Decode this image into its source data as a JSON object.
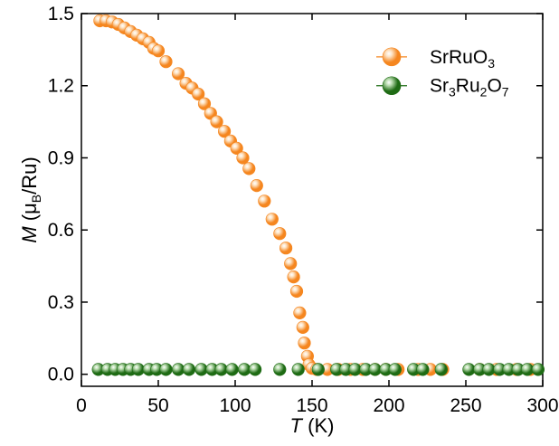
{
  "chart_data": {
    "type": "scatter",
    "x_axis": {
      "label_italic": "T",
      "label_rest": " (K)",
      "range": [
        0,
        300
      ],
      "ticks": [
        0,
        50,
        100,
        150,
        200,
        250,
        300
      ]
    },
    "y_axis": {
      "label_italic": "M",
      "label_open": " (μ",
      "label_sub": "B",
      "label_close": "/Ru)",
      "range": [
        -0.05,
        1.5
      ],
      "ticks": [
        "0.0",
        "0.3",
        "0.6",
        "0.9",
        "1.2",
        "1.5"
      ]
    },
    "grid": false,
    "legend_position": "top-right",
    "series": [
      {
        "name_parts": [
          [
            "SrRuO",
            false
          ],
          [
            "3",
            true
          ]
        ],
        "color": "#f5861f",
        "highlight": "#fde3c4",
        "points": [
          [
            12,
            1.47
          ],
          [
            16,
            1.47
          ],
          [
            20,
            1.465
          ],
          [
            24,
            1.455
          ],
          [
            28,
            1.44
          ],
          [
            32,
            1.425
          ],
          [
            36,
            1.41
          ],
          [
            40,
            1.395
          ],
          [
            44,
            1.38
          ],
          [
            47,
            1.355
          ],
          [
            50,
            1.345
          ],
          [
            55,
            1.3
          ],
          [
            63,
            1.25
          ],
          [
            68,
            1.21
          ],
          [
            72,
            1.19
          ],
          [
            76,
            1.165
          ],
          [
            80,
            1.125
          ],
          [
            84,
            1.085
          ],
          [
            88,
            1.05
          ],
          [
            93,
            1.01
          ],
          [
            97,
            0.97
          ],
          [
            101,
            0.94
          ],
          [
            105,
            0.9
          ],
          [
            109,
            0.855
          ],
          [
            114,
            0.785
          ],
          [
            119,
            0.72
          ],
          [
            124,
            0.645
          ],
          [
            129,
            0.585
          ],
          [
            133,
            0.525
          ],
          [
            136,
            0.46
          ],
          [
            138,
            0.405
          ],
          [
            140,
            0.345
          ],
          [
            142,
            0.255
          ],
          [
            144,
            0.195
          ],
          [
            145,
            0.13
          ],
          [
            147,
            0.075
          ],
          [
            148,
            0.04
          ],
          [
            150,
            0.025
          ],
          [
            153,
            0.02
          ],
          [
            160,
            0.02
          ],
          [
            167,
            0.02
          ],
          [
            175,
            0.02
          ],
          [
            183,
            0.02
          ],
          [
            191,
            0.02
          ],
          [
            198,
            0.02
          ],
          [
            206,
            0.02
          ],
          [
            219,
            0.02
          ],
          [
            227,
            0.02
          ],
          [
            235,
            0.02
          ],
          [
            259,
            0.02
          ],
          [
            270,
            0.02
          ],
          [
            283,
            0.02
          ],
          [
            292,
            0.02
          ]
        ]
      },
      {
        "name_parts": [
          [
            "Sr",
            false
          ],
          [
            "3",
            true
          ],
          [
            "Ru",
            false
          ],
          [
            "2",
            true
          ],
          [
            "O",
            false
          ],
          [
            "7",
            true
          ]
        ],
        "color": "#1e6b14",
        "highlight": "#b9dcaf",
        "points": [
          [
            11,
            0.02
          ],
          [
            17,
            0.02
          ],
          [
            22,
            0.02
          ],
          [
            27,
            0.02
          ],
          [
            32,
            0.02
          ],
          [
            37,
            0.02
          ],
          [
            44,
            0.02
          ],
          [
            49,
            0.02
          ],
          [
            55,
            0.02
          ],
          [
            63,
            0.02
          ],
          [
            70,
            0.02
          ],
          [
            78,
            0.02
          ],
          [
            85,
            0.02
          ],
          [
            91,
            0.02
          ],
          [
            98,
            0.02
          ],
          [
            106,
            0.02
          ],
          [
            113,
            0.02
          ],
          [
            129,
            0.02
          ],
          [
            141,
            0.02
          ],
          [
            154,
            0.02
          ],
          [
            166,
            0.02
          ],
          [
            172,
            0.02
          ],
          [
            178,
            0.02
          ],
          [
            185,
            0.02
          ],
          [
            191,
            0.02
          ],
          [
            198,
            0.02
          ],
          [
            204,
            0.02
          ],
          [
            216,
            0.02
          ],
          [
            222,
            0.02
          ],
          [
            234,
            0.02
          ],
          [
            252,
            0.02
          ],
          [
            259,
            0.02
          ],
          [
            265,
            0.02
          ],
          [
            272,
            0.02
          ],
          [
            278,
            0.02
          ],
          [
            284,
            0.02
          ],
          [
            290,
            0.02
          ],
          [
            297,
            0.02
          ]
        ]
      }
    ]
  }
}
